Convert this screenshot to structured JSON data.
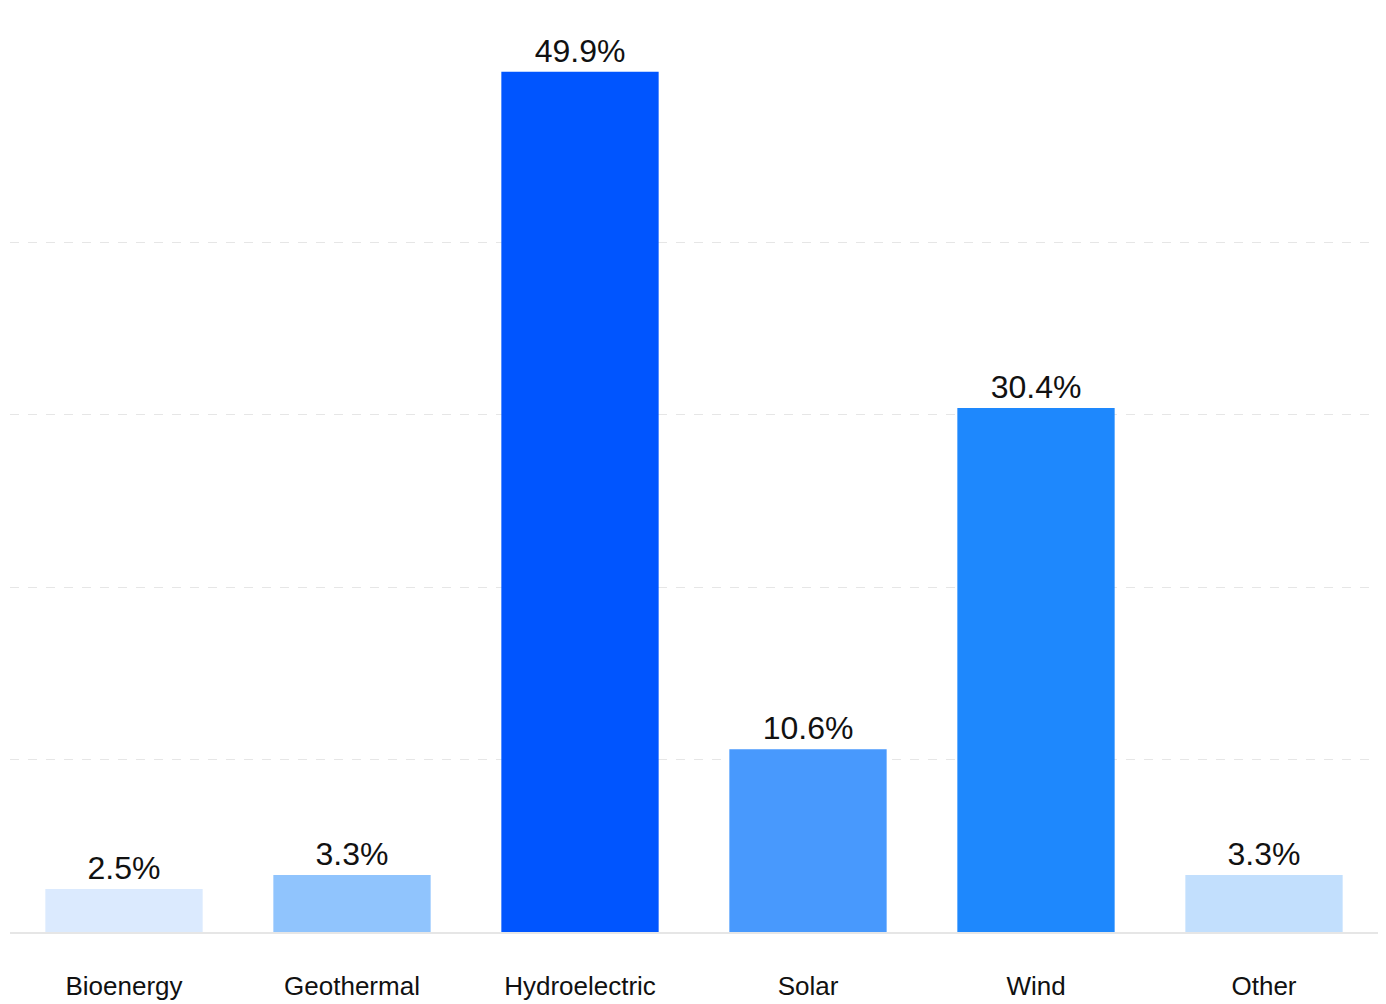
{
  "chart_data": {
    "type": "bar",
    "categories": [
      "Bioenergy",
      "Geothermal",
      "Hydroelectric",
      "Solar",
      "Wind",
      "Other"
    ],
    "values": [
      2.5,
      3.3,
      49.9,
      10.6,
      30.4,
      3.3
    ],
    "value_labels": [
      "2.5%",
      "3.3%",
      "49.9%",
      "10.6%",
      "30.4%",
      "3.3%"
    ],
    "colors": [
      "#dbeafe",
      "#90c4fd",
      "#0055ff",
      "#4899fd",
      "#1e88fd",
      "#c2dffd"
    ],
    "ylim": [
      0,
      50
    ],
    "yticks": [
      0,
      10,
      20,
      30,
      40,
      50
    ],
    "grid": true,
    "data_labels": true,
    "tick_labels": "x"
  }
}
